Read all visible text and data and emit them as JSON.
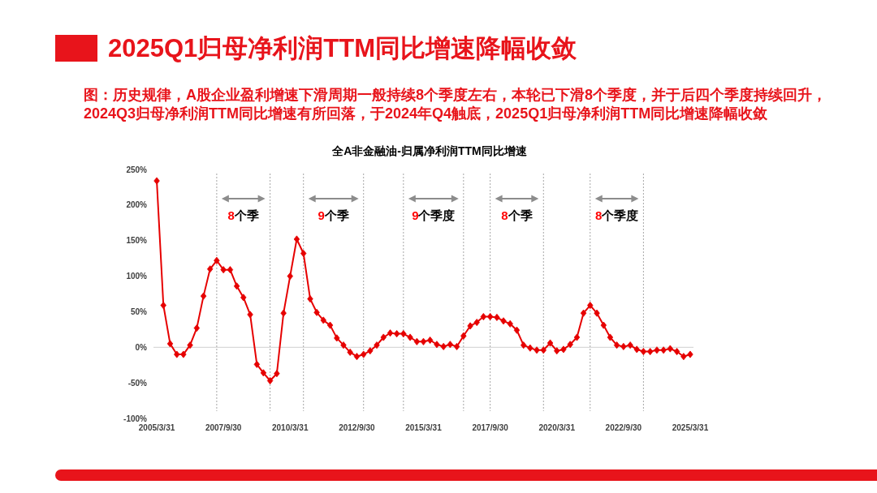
{
  "chart_data": {
    "type": "line",
    "title": "2025Q1归母净利润TTM同比增速降幅收敛",
    "subtitle": "图：历史规律，A股企业盈利增速下滑周期一般持续8个季度左右，本轮已下滑8个季度，并于后四个季度持续回升，2024Q3归母净利润TTM同比增速有所回落，于2024年Q4触底，2025Q1归母净利润TTM同比增速降幅收敛",
    "x": [
      "2005-03-31",
      "2005-06-30",
      "2005-09-30",
      "2005-12-31",
      "2006-03-31",
      "2006-06-30",
      "2006-09-30",
      "2006-12-31",
      "2007-03-31",
      "2007-06-30",
      "2007-09-30",
      "2007-12-31",
      "2008-03-31",
      "2008-06-30",
      "2008-09-30",
      "2008-12-31",
      "2009-03-31",
      "2009-06-30",
      "2009-09-30",
      "2009-12-31",
      "2010-03-31",
      "2010-06-30",
      "2010-09-30",
      "2010-12-31",
      "2011-03-31",
      "2011-06-30",
      "2011-09-30",
      "2011-12-31",
      "2012-03-31",
      "2012-06-30",
      "2012-09-30",
      "2012-12-31",
      "2013-03-31",
      "2013-06-30",
      "2013-09-30",
      "2013-12-31",
      "2014-03-31",
      "2014-06-30",
      "2014-09-30",
      "2014-12-31",
      "2015-03-31",
      "2015-06-30",
      "2015-09-30",
      "2015-12-31",
      "2016-03-31",
      "2016-06-30",
      "2016-09-30",
      "2016-12-31",
      "2017-03-31",
      "2017-06-30",
      "2017-09-30",
      "2017-12-31",
      "2018-03-31",
      "2018-06-30",
      "2018-09-30",
      "2018-12-31",
      "2019-03-31",
      "2019-06-30",
      "2019-09-30",
      "2019-12-31",
      "2020-03-31",
      "2020-06-30",
      "2020-09-30",
      "2020-12-31",
      "2021-03-31",
      "2021-06-30",
      "2021-09-30",
      "2021-12-31",
      "2022-03-31",
      "2022-06-30",
      "2022-09-30",
      "2022-12-31",
      "2023-03-31",
      "2023-06-30",
      "2023-09-30",
      "2023-12-31",
      "2024-03-31",
      "2024-06-30",
      "2024-09-30",
      "2024-12-31",
      "2025-03-31"
    ],
    "series": [
      {
        "color": "#e60000",
        "values": [
          234,
          59,
          5,
          -10,
          -10,
          3,
          27,
          72,
          110,
          122,
          109,
          109,
          86,
          70,
          46,
          -24,
          -36,
          -47,
          -37,
          48,
          100,
          152,
          132,
          68,
          49,
          38,
          31,
          13,
          3,
          -7,
          -13,
          -10,
          -5,
          3,
          14,
          20,
          19,
          19,
          14,
          8,
          8,
          10,
          4,
          1,
          4,
          1,
          16,
          30,
          35,
          43,
          43,
          42,
          37,
          33,
          24,
          3,
          -1,
          -4,
          -4,
          6,
          -5,
          -3,
          4,
          14,
          48,
          59,
          48,
          31,
          14,
          3,
          1,
          3,
          -3,
          -6,
          -6,
          -4,
          -4,
          -2,
          -6,
          -13,
          -10
        ]
      }
    ],
    "xlim": [
      "2005-02-14",
      "2025-05-15"
    ],
    "xticks": [
      {
        "value": "2005-03-31",
        "label": "2005/3/31"
      },
      {
        "value": "2007-09-30",
        "label": "2007/9/30"
      },
      {
        "value": "2010-03-31",
        "label": "2010/3/31"
      },
      {
        "value": "2012-09-30",
        "label": "2012/9/30"
      },
      {
        "value": "2015-03-31",
        "label": "2015/3/31"
      },
      {
        "value": "2017-09-30",
        "label": "2017/9/30"
      },
      {
        "value": "2020-03-31",
        "label": "2020/3/31"
      },
      {
        "value": "2022-09-30",
        "label": "2022/9/30"
      },
      {
        "value": "2025-03-31",
        "label": "2025/3/31"
      }
    ],
    "ylim": [
      -100,
      250
    ],
    "yticks": [
      {
        "value": -100,
        "label": "-100%"
      },
      {
        "value": -50,
        "label": "-50%"
      },
      {
        "value": 0,
        "label": "0%"
      },
      {
        "value": 50,
        "label": "50%"
      },
      {
        "value": 100,
        "label": "100%"
      },
      {
        "value": 150,
        "label": "150%"
      },
      {
        "value": 200,
        "label": "200%"
      },
      {
        "value": 250,
        "label": "250%"
      }
    ],
    "marker": "diamond",
    "line_style": "solid",
    "ref_lines": [
      {
        "axis": "x",
        "value": "2007-06-30",
        "color": "#a6a6a6",
        "line_style": "dotted"
      },
      {
        "axis": "x",
        "value": "2009-06-30",
        "color": "#a6a6a6",
        "line_style": "dotted"
      },
      {
        "axis": "x",
        "value": "2010-09-30",
        "color": "#a6a6a6",
        "line_style": "dotted"
      },
      {
        "axis": "x",
        "value": "2012-12-31",
        "color": "#a6a6a6",
        "line_style": "dotted"
      },
      {
        "axis": "x",
        "value": "2014-06-30",
        "color": "#a6a6a6",
        "line_style": "dotted"
      },
      {
        "axis": "x",
        "value": "2016-09-30",
        "color": "#a6a6a6",
        "line_style": "dotted"
      },
      {
        "axis": "x",
        "value": "2017-09-30",
        "color": "#a6a6a6",
        "line_style": "dotted"
      },
      {
        "axis": "x",
        "value": "2019-09-30",
        "color": "#a6a6a6",
        "line_style": "dotted"
      },
      {
        "axis": "x",
        "value": "2021-06-30",
        "color": "#a6a6a6",
        "line_style": "dotted"
      },
      {
        "axis": "x",
        "value": "2023-06-30",
        "color": "#a6a6a6",
        "line_style": "dotted"
      }
    ],
    "annotations": [
      "全A非金融油-归属净利润TTM同比增速",
      "8个季",
      "9个季",
      "9个季度",
      "8个季",
      "8个季度"
    ]
  }
}
